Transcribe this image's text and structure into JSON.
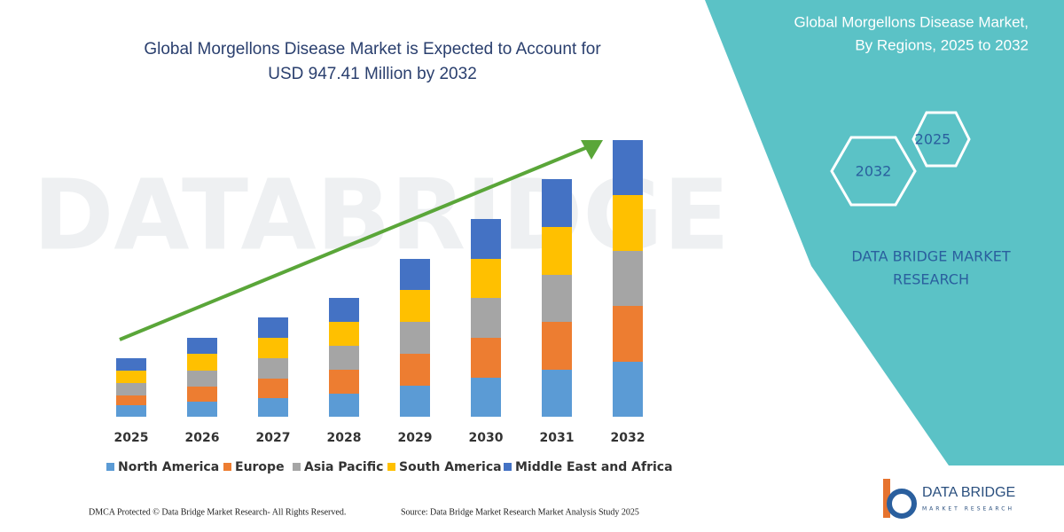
{
  "chart_data": {
    "type": "stacked_bar",
    "title_lines": [
      "Global Morgellons Disease Market is Expected to Account for",
      "USD 947.41 Million by 2032"
    ],
    "categories": [
      "2025",
      "2026",
      "2027",
      "2028",
      "2029",
      "2030",
      "2031",
      "2032"
    ],
    "series": [
      {
        "name": "North America",
        "color": "#5b9bd5",
        "values": [
          13,
          17,
          21,
          26,
          35,
          44,
          53,
          62
        ]
      },
      {
        "name": "Europe",
        "color": "#ed7d31",
        "values": [
          11,
          17,
          22,
          27,
          36,
          45,
          54,
          63
        ]
      },
      {
        "name": "Asia Pacific",
        "color": "#a5a5a5",
        "values": [
          14,
          18,
          23,
          27,
          36,
          45,
          53,
          62
        ]
      },
      {
        "name": "South America",
        "color": "#ffc000",
        "values": [
          14,
          19,
          23,
          27,
          36,
          44,
          54,
          63
        ]
      },
      {
        "name": "Middle East and Africa",
        "color": "#4472c4",
        "values": [
          14,
          18,
          23,
          27,
          35,
          45,
          54,
          62
        ]
      }
    ],
    "ylim": [
      0,
      320
    ],
    "legend": "bottom"
  },
  "watermark": "DATABRIDGE",
  "right_panel": {
    "title_lines": [
      "Global Morgellons Disease Market,",
      "By Regions, 2025 to 2032"
    ],
    "hexagons": [
      "2025",
      "2032"
    ],
    "brand_lines": [
      "DATA BRIDGE MARKET",
      "RESEARCH"
    ]
  },
  "logo": {
    "name": "DATA BRIDGE",
    "tagline": "MARKET RESEARCH"
  },
  "footer": {
    "left": "DMCA Protected © Data Bridge Market Research-  All Rights Reserved.",
    "right": "Source: Data Bridge Market Research  Market Analysis Study 2025"
  }
}
